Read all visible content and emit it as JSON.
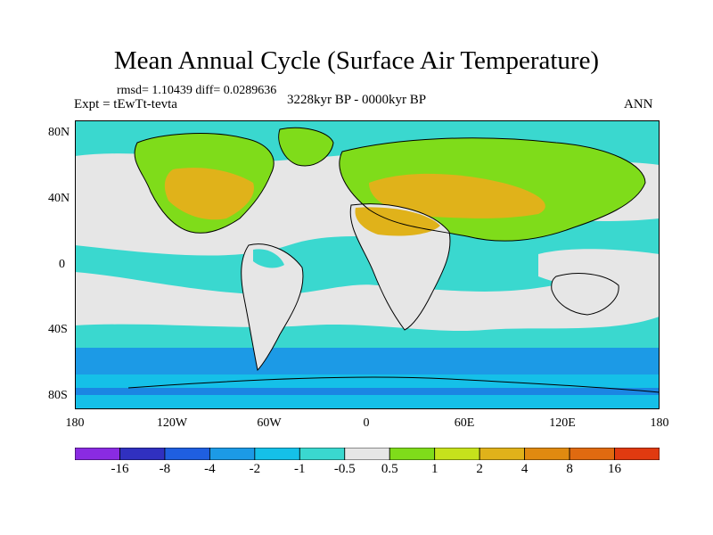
{
  "title": "Mean Annual Cycle (Surface Air Temperature)",
  "stats_line": "rmsd= 1.10439 diff= 0.0289636",
  "experiment": "Expt = tEwTt-tevta",
  "period": "3228kyr BP - 0000kyr BP",
  "season": "ANN",
  "lat_ticks": [
    "80N",
    "40N",
    "0",
    "40S",
    "80S"
  ],
  "lon_ticks": [
    "180",
    "120W",
    "60W",
    "0",
    "60E",
    "120E",
    "180"
  ],
  "colorbar": {
    "labels": [
      "-16",
      "-8",
      "-4",
      "-2",
      "-1",
      "-0.5",
      "0.5",
      "1",
      "2",
      "4",
      "8",
      "16"
    ],
    "colors": [
      "#8a2be2",
      "#3030c0",
      "#1f5fe0",
      "#1c9ae6",
      "#15c0e8",
      "#3ad8cf",
      "#e6e6e6",
      "#7fdc1a",
      "#c6e21c",
      "#e0b21a",
      "#e08a10",
      "#e06a10",
      "#e03a10"
    ]
  }
}
